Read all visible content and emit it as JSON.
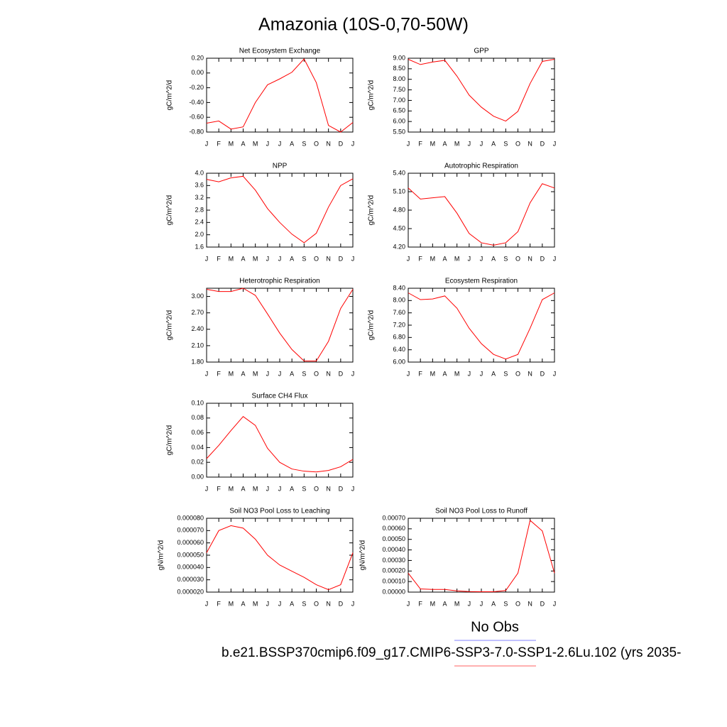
{
  "title": "Amazonia (10S-0,70-50W)",
  "legend": {
    "items": [
      {
        "label": "No Obs",
        "color": "#8080ff"
      },
      {
        "label": "b.e21.BSSP370cmip6.f09_g17.CMIP6-SSP3-7.0-SSP1-2.6Lu.102 (yrs 2035-",
        "color": "#ff6060"
      }
    ]
  },
  "chart_data": [
    {
      "type": "line",
      "title": "Net Ecosystem Exchange",
      "y_label": "gC/m^2/d",
      "color": "#ff0000",
      "categories": [
        "J",
        "F",
        "M",
        "A",
        "M",
        "J",
        "J",
        "A",
        "S",
        "O",
        "N",
        "D",
        "J"
      ],
      "values": [
        -0.68,
        -0.65,
        -0.76,
        -0.73,
        -0.4,
        -0.16,
        -0.08,
        0.01,
        0.19,
        -0.13,
        -0.71,
        -0.8,
        -0.67
      ],
      "ylim": [
        -0.8,
        0.2
      ],
      "yticks": [
        {
          "value": -0.8,
          "label": "-0.80"
        },
        {
          "value": -0.6,
          "label": "-0.60"
        },
        {
          "value": -0.4,
          "label": "-0.40"
        },
        {
          "value": -0.2,
          "label": "-0.20"
        },
        {
          "value": 0,
          "label": "0.00"
        },
        {
          "value": 0.2,
          "label": "0.20"
        }
      ]
    },
    {
      "type": "line",
      "title": "GPP",
      "y_label": "gC/m^2/d",
      "color": "#ff0000",
      "categories": [
        "J",
        "F",
        "M",
        "A",
        "M",
        "J",
        "J",
        "A",
        "S",
        "O",
        "N",
        "D",
        "J"
      ],
      "values": [
        8.95,
        8.7,
        8.82,
        8.9,
        8.15,
        7.25,
        6.68,
        6.25,
        6.02,
        6.48,
        7.8,
        8.85,
        8.95
      ],
      "ylim": [
        5.5,
        9.0
      ],
      "yticks": [
        {
          "value": 5.5,
          "label": "5.50"
        },
        {
          "value": 6,
          "label": "6.00"
        },
        {
          "value": 6.5,
          "label": "6.50"
        },
        {
          "value": 7,
          "label": "7.00"
        },
        {
          "value": 7.5,
          "label": "7.50"
        },
        {
          "value": 8,
          "label": "8.00"
        },
        {
          "value": 8.5,
          "label": "8.50"
        },
        {
          "value": 9,
          "label": "9.00"
        }
      ]
    },
    {
      "type": "line",
      "title": "NPP",
      "y_label": "gC/m^2/d",
      "color": "#ff0000",
      "categories": [
        "J",
        "F",
        "M",
        "A",
        "M",
        "J",
        "J",
        "A",
        "S",
        "O",
        "N",
        "D",
        "J"
      ],
      "values": [
        3.8,
        3.72,
        3.85,
        3.9,
        3.45,
        2.85,
        2.4,
        2.02,
        1.74,
        2.05,
        2.9,
        3.6,
        3.82
      ],
      "ylim": [
        1.6,
        4.0
      ],
      "yticks": [
        1.6,
        {
          "value": 2,
          "label": "2.0"
        },
        2.4,
        2.8,
        3.2,
        3.6,
        {
          "value": 4,
          "label": "4.0"
        }
      ]
    },
    {
      "type": "line",
      "title": "Autotrophic Respiration",
      "y_label": "gC/m^2/d",
      "color": "#ff0000",
      "categories": [
        "J",
        "F",
        "M",
        "A",
        "M",
        "J",
        "J",
        "A",
        "S",
        "O",
        "N",
        "D",
        "J"
      ],
      "values": [
        5.16,
        4.98,
        5.0,
        5.02,
        4.75,
        4.42,
        4.27,
        4.23,
        4.27,
        4.45,
        4.92,
        5.23,
        5.16
      ],
      "ylim": [
        4.2,
        5.4
      ],
      "yticks": [
        {
          "value": 4.2,
          "label": "4.20"
        },
        {
          "value": 4.5,
          "label": "4.50"
        },
        {
          "value": 4.8,
          "label": "4.80"
        },
        {
          "value": 5.1,
          "label": "5.10"
        },
        {
          "value": 5.4,
          "label": "5.40"
        }
      ]
    },
    {
      "type": "line",
      "title": "Heterotrophic Respiration",
      "y_label": "gC/m^2/d",
      "color": "#ff0000",
      "categories": [
        "J",
        "F",
        "M",
        "A",
        "M",
        "J",
        "J",
        "A",
        "S",
        "O",
        "N",
        "D",
        "J"
      ],
      "values": [
        3.13,
        3.09,
        3.09,
        3.15,
        3.02,
        2.68,
        2.33,
        2.03,
        1.82,
        1.82,
        2.18,
        2.78,
        3.13
      ],
      "ylim": [
        1.8,
        3.15
      ],
      "yticks": [
        {
          "value": 1.8,
          "label": "1.80"
        },
        {
          "value": 2.1,
          "label": "2.10"
        },
        {
          "value": 2.4,
          "label": "2.40"
        },
        {
          "value": 2.7,
          "label": "2.70"
        },
        {
          "value": 3,
          "label": "3.00"
        }
      ]
    },
    {
      "type": "line",
      "title": "Ecosystem Respiration",
      "y_label": "gC/m^2/d",
      "color": "#ff0000",
      "categories": [
        "J",
        "F",
        "M",
        "A",
        "M",
        "J",
        "J",
        "A",
        "S",
        "O",
        "N",
        "D",
        "J"
      ],
      "values": [
        8.25,
        8.03,
        8.05,
        8.15,
        7.75,
        7.1,
        6.6,
        6.25,
        6.1,
        6.25,
        7.1,
        8.03,
        8.25
      ],
      "ylim": [
        6.0,
        8.4
      ],
      "yticks": [
        {
          "value": 6,
          "label": "6.00"
        },
        {
          "value": 6.4,
          "label": "6.40"
        },
        {
          "value": 6.8,
          "label": "6.80"
        },
        {
          "value": 7.2,
          "label": "7.20"
        },
        {
          "value": 7.6,
          "label": "7.60"
        },
        {
          "value": 8,
          "label": "8.00"
        },
        {
          "value": 8.4,
          "label": "8.40"
        }
      ]
    },
    {
      "type": "line",
      "title": "Surface CH4 Flux",
      "y_label": "gC/m^2/d",
      "color": "#ff0000",
      "categories": [
        "J",
        "F",
        "M",
        "A",
        "M",
        "J",
        "J",
        "A",
        "S",
        "O",
        "N",
        "D",
        "J"
      ],
      "values": [
        0.025,
        0.043,
        0.063,
        0.082,
        0.07,
        0.039,
        0.02,
        0.011,
        0.008,
        0.007,
        0.009,
        0.014,
        0.024
      ],
      "ylim": [
        0,
        0.1
      ],
      "yticks": [
        {
          "value": 0,
          "label": "0.00"
        },
        0.02,
        0.04,
        0.06,
        0.08,
        {
          "value": 0.1,
          "label": "0.10"
        }
      ]
    },
    {
      "type": "line",
      "title": "Soil NO3 Pool Loss to Leaching",
      "y_label": "gN/m^2/d",
      "color": "#ff0000",
      "categories": [
        "J",
        "F",
        "M",
        "A",
        "M",
        "J",
        "J",
        "A",
        "S",
        "O",
        "N",
        "D",
        "J"
      ],
      "values": [
        5.2e-05,
        7e-05,
        7.4e-05,
        7.2e-05,
        6.3e-05,
        5e-05,
        4.2e-05,
        3.7e-05,
        3.2e-05,
        2.6e-05,
        2.2e-05,
        2.6e-05,
        5.2e-05
      ],
      "ylim": [
        2e-05,
        8e-05
      ],
      "yticks": [
        {
          "value": 2e-05,
          "label": "0.000020"
        },
        {
          "value": 3e-05,
          "label": "0.000030"
        },
        {
          "value": 4e-05,
          "label": "0.000040"
        },
        {
          "value": 5e-05,
          "label": "0.000050"
        },
        {
          "value": 6e-05,
          "label": "0.000060"
        },
        {
          "value": 7e-05,
          "label": "0.000070"
        },
        {
          "value": 8e-05,
          "label": "0.000080"
        }
      ]
    },
    {
      "type": "line",
      "title": "Soil NO3 Pool Loss to Runoff",
      "y_label": "gN/m^2/d",
      "color": "#ff0000",
      "categories": [
        "J",
        "F",
        "M",
        "A",
        "M",
        "J",
        "J",
        "A",
        "S",
        "O",
        "N",
        "D",
        "J"
      ],
      "values": [
        0.00018,
        3e-05,
        2.5e-05,
        2.5e-05,
        1.2e-05,
        5e-06,
        3e-06,
        3e-06,
        1.5e-05,
        0.00018,
        0.00068,
        0.00058,
        0.00018
      ],
      "ylim": [
        0,
        0.0007
      ],
      "yticks": [
        {
          "value": 0,
          "label": "0.00000"
        },
        {
          "value": 0.0001,
          "label": "0.00010"
        },
        {
          "value": 0.0002,
          "label": "0.00020"
        },
        {
          "value": 0.0003,
          "label": "0.00030"
        },
        {
          "value": 0.0004,
          "label": "0.00040"
        },
        {
          "value": 0.0005,
          "label": "0.00050"
        },
        {
          "value": 0.0006,
          "label": "0.00060"
        },
        {
          "value": 0.0007,
          "label": "0.00070"
        }
      ]
    }
  ]
}
